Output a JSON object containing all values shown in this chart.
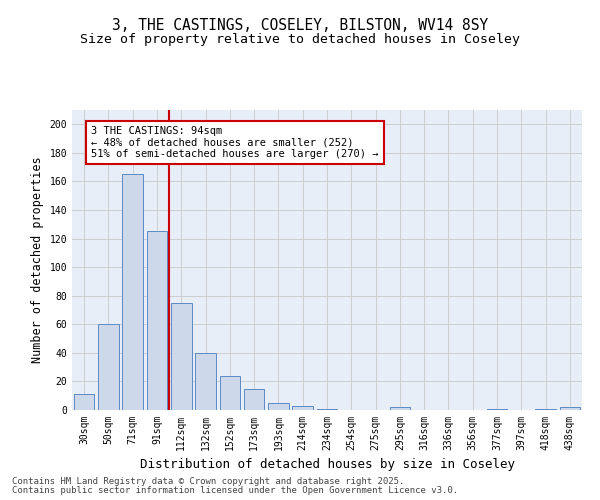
{
  "title": "3, THE CASTINGS, COSELEY, BILSTON, WV14 8SY",
  "subtitle": "Size of property relative to detached houses in Coseley",
  "xlabel": "Distribution of detached houses by size in Coseley",
  "ylabel": "Number of detached properties",
  "categories": [
    "30sqm",
    "50sqm",
    "71sqm",
    "91sqm",
    "112sqm",
    "132sqm",
    "152sqm",
    "173sqm",
    "193sqm",
    "214sqm",
    "234sqm",
    "254sqm",
    "275sqm",
    "295sqm",
    "316sqm",
    "336sqm",
    "356sqm",
    "377sqm",
    "397sqm",
    "418sqm",
    "438sqm"
  ],
  "values": [
    11,
    60,
    165,
    125,
    75,
    40,
    24,
    15,
    5,
    3,
    1,
    0,
    0,
    2,
    0,
    0,
    0,
    1,
    0,
    1,
    2
  ],
  "bar_color": "#cdd8ea",
  "bar_edge_color": "#5b8ac5",
  "red_line_index": 3,
  "annotation_line1": "3 THE CASTINGS: 94sqm",
  "annotation_line2": "← 48% of detached houses are smaller (252)",
  "annotation_line3": "51% of semi-detached houses are larger (270) →",
  "annotation_box_color": "#ffffff",
  "annotation_box_edge_color": "#cc0000",
  "red_line_color": "#cc0000",
  "ylim": [
    0,
    210
  ],
  "yticks": [
    0,
    20,
    40,
    60,
    80,
    100,
    120,
    140,
    160,
    180,
    200
  ],
  "grid_color": "#c8c8c8",
  "bg_color": "#e8eef8",
  "footer1": "Contains HM Land Registry data © Crown copyright and database right 2025.",
  "footer2": "Contains public sector information licensed under the Open Government Licence v3.0.",
  "title_fontsize": 10.5,
  "subtitle_fontsize": 9.5,
  "xlabel_fontsize": 9,
  "ylabel_fontsize": 8.5,
  "tick_fontsize": 7,
  "annotation_fontsize": 7.5,
  "footer_fontsize": 6.5
}
